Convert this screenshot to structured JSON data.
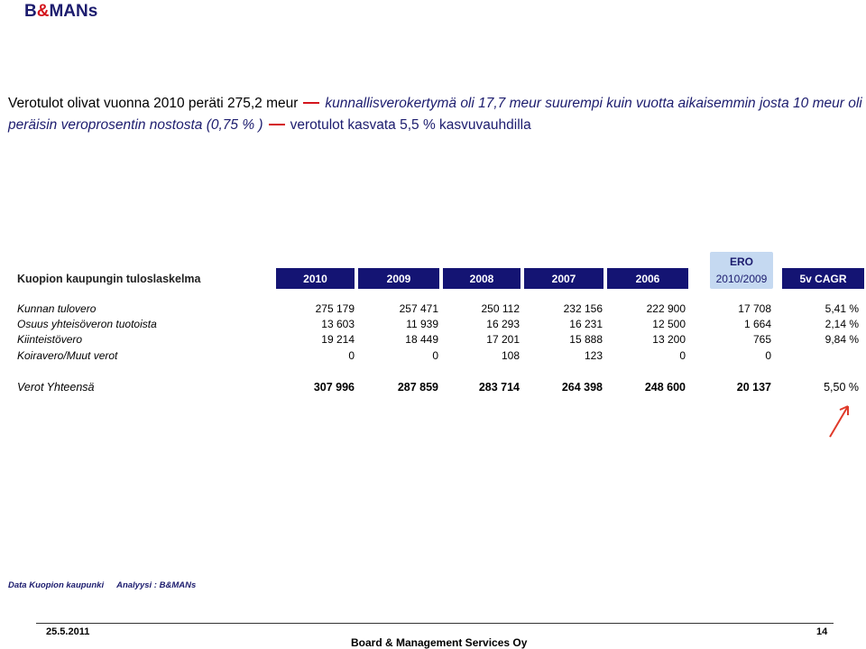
{
  "brand": {
    "part1": "B",
    "amp": "&",
    "part2": "MANs"
  },
  "headline": {
    "plain1": "Verotulot olivat vuonna 2010 peräti 275,2 meur",
    "italic": "kunnallisverokertymä oli 17,7 meur suurempi kuin vuotta aikaisemmin josta 10 meur oli peräisin veroprosentin nostosta (0,75 % )",
    "plain2": "verotulot kasvata 5,5  % kasvuvauhdilla"
  },
  "table": {
    "title": "Kuopion kaupungin tuloslaskelma",
    "years": [
      "2010",
      "2009",
      "2008",
      "2007",
      "2006"
    ],
    "ero_title": "ERO",
    "ero_sub": "2010/2009",
    "cagr_header": "5v CAGR",
    "rows": [
      {
        "label": "Kunnan tulovero",
        "values": [
          "275 179",
          "257 471",
          "250 112",
          "232 156",
          "222 900"
        ],
        "ero": "17 708",
        "cagr": "5,41 %"
      },
      {
        "label": "Osuus yhteisöveron tuotoista",
        "values": [
          "13 603",
          "11 939",
          "16 293",
          "16 231",
          "12 500"
        ],
        "ero": "1 664",
        "cagr": "2,14 %"
      },
      {
        "label": "Kiinteistövero",
        "values": [
          "19 214",
          "18 449",
          "17 201",
          "15 888",
          "13 200"
        ],
        "ero": "765",
        "cagr": "9,84 %"
      },
      {
        "label": "Koiravero/Muut verot",
        "values": [
          "0",
          "0",
          "108",
          "123",
          "0"
        ],
        "ero": "0",
        "cagr": ""
      }
    ],
    "total": {
      "label": "Verot Yhteensä",
      "values": [
        "307 996",
        "287 859",
        "283 714",
        "264 398",
        "248 600"
      ],
      "ero": "20 137",
      "cagr": "5,50 %"
    }
  },
  "annotation": {
    "arrow_color": "#e03a2a",
    "icon": "arrow-up-right-icon"
  },
  "source": {
    "data": "Data Kuopion kaupunki",
    "analysis": "Analyysi : B&MANs"
  },
  "footer": {
    "date": "25.5.2011",
    "company": "Board & Management Services Oy",
    "page": "14"
  },
  "colors": {
    "header_navy": "#141473",
    "ero_bg": "#c5d9f1",
    "accent_red": "#d4161d"
  }
}
